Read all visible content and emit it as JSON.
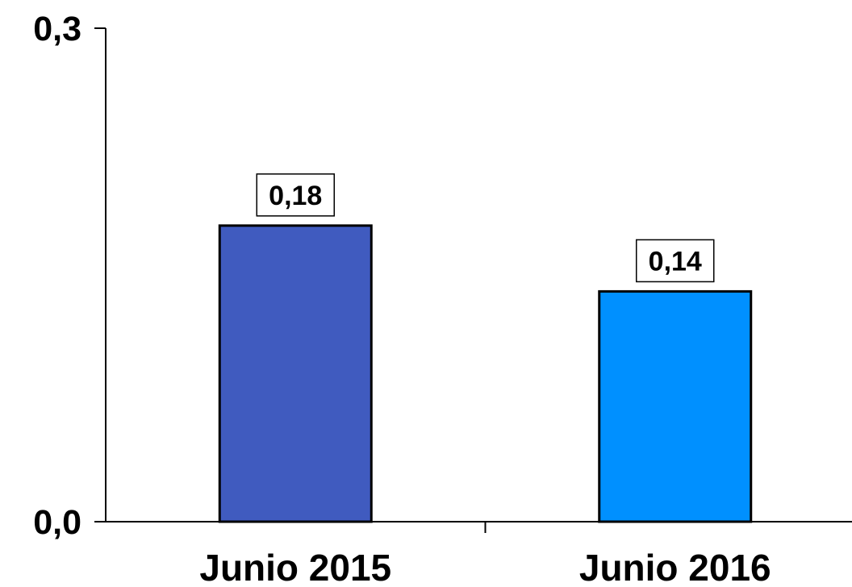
{
  "chart_data": {
    "type": "bar",
    "categories": [
      "Junio 2015",
      "Junio 2016"
    ],
    "values": [
      0.18,
      0.14
    ],
    "data_labels": [
      "0,18",
      "0,14"
    ],
    "bar_colors": [
      "#405BBF",
      "#0090FF"
    ],
    "ylim": [
      0,
      0.3
    ],
    "y_tick_labels": [
      "0,0",
      "0,3"
    ],
    "title": "",
    "xlabel": "",
    "ylabel": "",
    "grid": false,
    "legend": "none"
  }
}
